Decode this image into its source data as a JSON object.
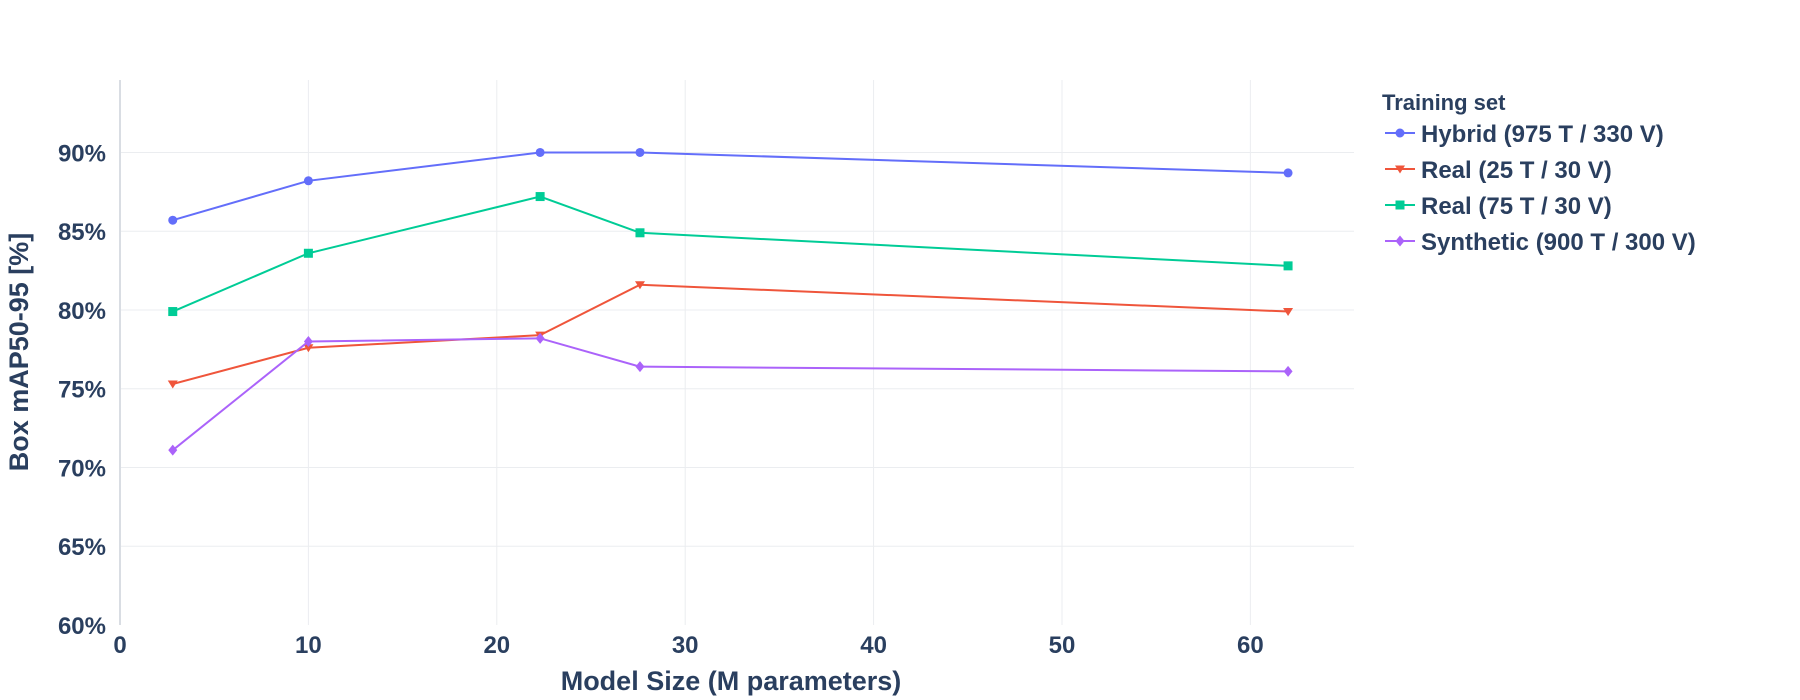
{
  "chart_data": {
    "type": "line",
    "xlabel": "Model Size (M parameters)",
    "ylabel": "Box mAP50-95 [%]",
    "xlim": [
      0,
      65.5
    ],
    "ylim": [
      60,
      94.6
    ],
    "xticks": [
      0,
      10,
      20,
      30,
      40,
      50,
      60
    ],
    "yticks": [
      60,
      65,
      70,
      75,
      80,
      85,
      90
    ],
    "ytick_suffix": "%",
    "grid": true,
    "legend": {
      "title": "Training set",
      "placement": "top-right, outside plot"
    },
    "series": [
      {
        "name": "Hybrid (975 T / 330 V)",
        "color": "#636efa",
        "marker": "circle",
        "x": [
          2.8,
          10.0,
          22.3,
          27.6,
          62.0
        ],
        "y": [
          85.7,
          88.2,
          90.0,
          90.0,
          88.7
        ]
      },
      {
        "name": "Real (25 T / 30 V)",
        "color": "#ef553b",
        "marker": "triangle-down",
        "x": [
          2.8,
          10.0,
          22.3,
          27.6,
          62.0
        ],
        "y": [
          75.3,
          77.6,
          78.4,
          81.6,
          79.9
        ]
      },
      {
        "name": "Real (75 T / 30 V)",
        "color": "#00cc96",
        "marker": "square",
        "x": [
          2.8,
          10.0,
          22.3,
          27.6,
          62.0
        ],
        "y": [
          79.9,
          83.6,
          87.2,
          84.9,
          82.8
        ]
      },
      {
        "name": "Synthetic (900 T / 300 V)",
        "color": "#ab63fa",
        "marker": "diamond",
        "x": [
          2.8,
          10.0,
          22.3,
          27.6,
          62.0
        ],
        "y": [
          71.1,
          78.0,
          78.2,
          76.4,
          76.1
        ]
      }
    ]
  }
}
